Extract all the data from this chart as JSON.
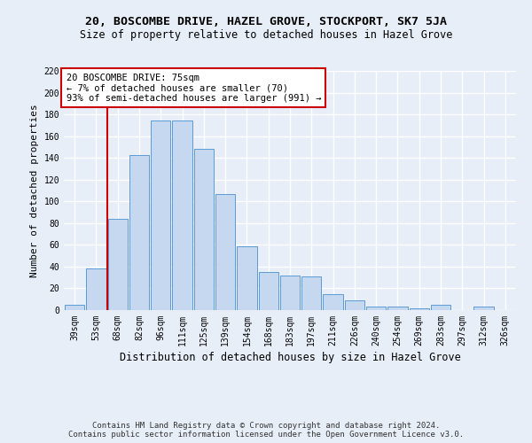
{
  "title": "20, BOSCOMBE DRIVE, HAZEL GROVE, STOCKPORT, SK7 5JA",
  "subtitle": "Size of property relative to detached houses in Hazel Grove",
  "xlabel": "Distribution of detached houses by size in Hazel Grove",
  "ylabel": "Number of detached properties",
  "footer_line1": "Contains HM Land Registry data © Crown copyright and database right 2024.",
  "footer_line2": "Contains public sector information licensed under the Open Government Licence v3.0.",
  "categories": [
    "39sqm",
    "53sqm",
    "68sqm",
    "82sqm",
    "96sqm",
    "111sqm",
    "125sqm",
    "139sqm",
    "154sqm",
    "168sqm",
    "183sqm",
    "197sqm",
    "211sqm",
    "226sqm",
    "240sqm",
    "254sqm",
    "269sqm",
    "283sqm",
    "297sqm",
    "312sqm",
    "326sqm"
  ],
  "values": [
    5,
    38,
    84,
    143,
    174,
    174,
    148,
    107,
    59,
    35,
    32,
    31,
    15,
    9,
    3,
    3,
    2,
    5,
    0,
    3,
    0
  ],
  "bar_color": "#c5d8f0",
  "bar_edge_color": "#5b9bd5",
  "vline_x": 1.5,
  "vline_color": "#cc0000",
  "annotation_text": "20 BOSCOMBE DRIVE: 75sqm\n← 7% of detached houses are smaller (70)\n93% of semi-detached houses are larger (991) →",
  "annotation_box_color": "#ffffff",
  "annotation_box_edge": "#cc0000",
  "ylim": [
    0,
    220
  ],
  "yticks": [
    0,
    20,
    40,
    60,
    80,
    100,
    120,
    140,
    160,
    180,
    200,
    220
  ],
  "bg_color": "#e8eef8",
  "plot_bg_color": "#e8eef8",
  "grid_color": "#ffffff",
  "title_fontsize": 9.5,
  "subtitle_fontsize": 8.5,
  "xlabel_fontsize": 8.5,
  "ylabel_fontsize": 8,
  "tick_fontsize": 7,
  "annotation_fontsize": 7.5,
  "footer_fontsize": 6.5
}
